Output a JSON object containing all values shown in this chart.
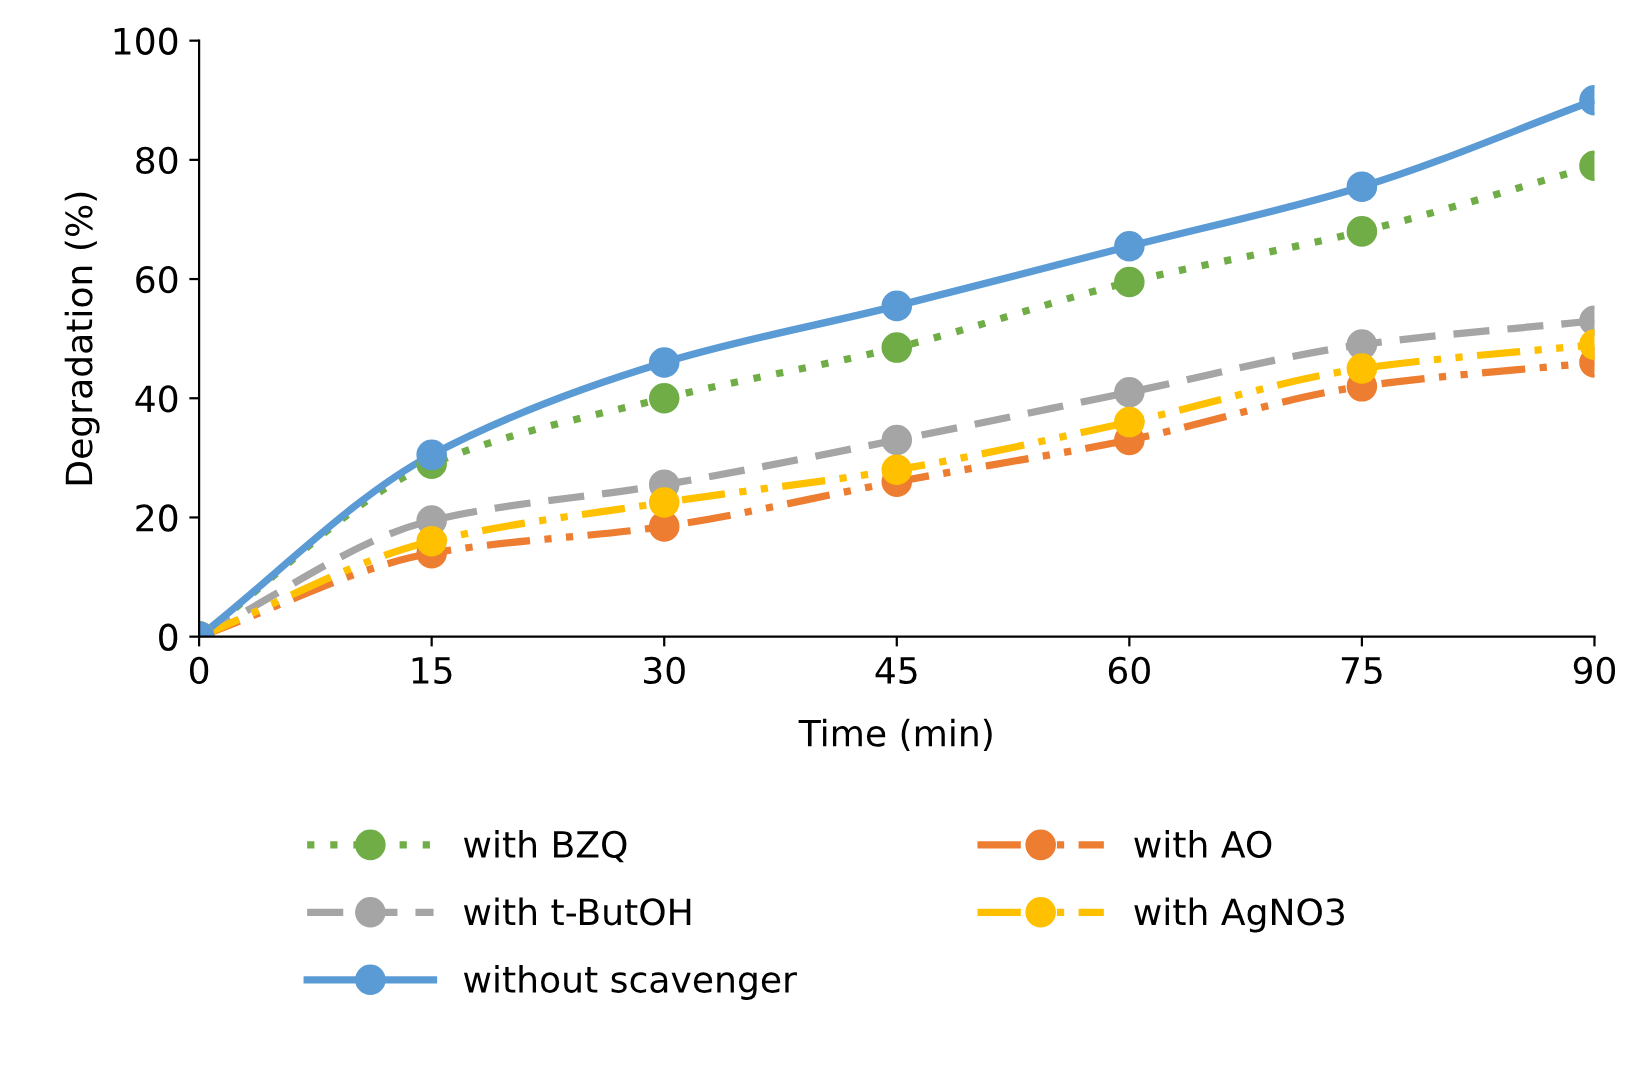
{
  "chart_data": {
    "type": "line",
    "xlabel": "Time (min)",
    "ylabel": "Degradation (%)",
    "x": [
      0,
      15,
      30,
      45,
      60,
      75,
      90
    ],
    "series": [
      {
        "name": "with BZQ",
        "color": "#70ad47",
        "line_style": "dotted",
        "values": [
          0,
          29,
          40,
          48.5,
          59.5,
          68,
          79
        ]
      },
      {
        "name": "with AO",
        "color": "#ed7d31",
        "line_style": "dashdot",
        "values": [
          0,
          14,
          18.5,
          26,
          33,
          42,
          46
        ]
      },
      {
        "name": "with t-ButOH",
        "color": "#a5a5a5",
        "line_style": "dashed",
        "values": [
          0,
          19.5,
          25.5,
          33,
          41,
          49,
          53
        ]
      },
      {
        "name": "with AgNO3",
        "color": "#ffc000",
        "line_style": "dashdot",
        "values": [
          0,
          16,
          22.5,
          28,
          36,
          45,
          49
        ]
      },
      {
        "name": "without scavenger",
        "color": "#5b9bd5",
        "line_style": "solid",
        "values": [
          0,
          30.5,
          46,
          55.5,
          65.5,
          75.5,
          90
        ]
      }
    ],
    "xlim": [
      0,
      90
    ],
    "xticks": [
      0,
      15,
      30,
      45,
      60,
      75,
      90
    ],
    "ylim": [
      0,
      100
    ],
    "yticks": [
      0,
      20,
      40,
      60,
      80,
      100
    ],
    "marker": "circle",
    "grid": false,
    "legend": "bottom"
  }
}
